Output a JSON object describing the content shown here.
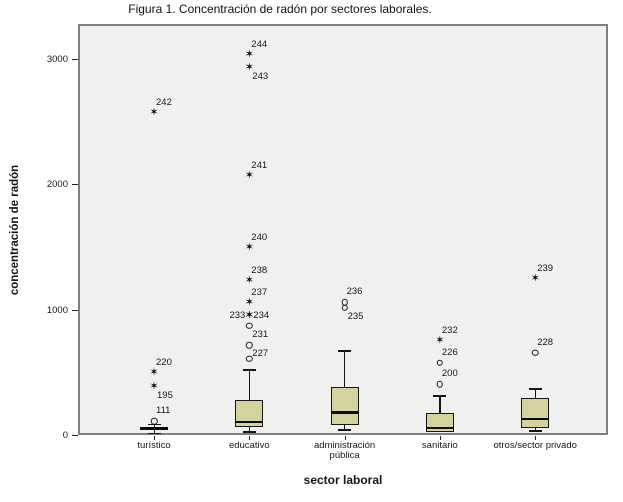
{
  "title": "Figura 1. Concentración de radón por sectores laborales.",
  "colors": {
    "box_fill": "#d5d2a0",
    "box_border": "#161616",
    "plot_background": "#f0f0ee",
    "plot_border": "#7f7f7f",
    "marker": "#0a0a0a"
  },
  "chart_data": {
    "type": "boxplot",
    "title": "Figura 1. Concentración de radón por sectores laborales.",
    "xlabel": "sector laboral",
    "ylabel": "concentración de radón",
    "ylim": [
      0,
      3270
    ],
    "yticks": [
      0,
      1000,
      2000,
      3000
    ],
    "grid": false,
    "legend": "none",
    "categories": [
      "turístico",
      "educativo",
      "administración\npública",
      "sanitario",
      "otros/sector privado"
    ],
    "series": [
      {
        "category": "turístico",
        "whisker_low": 18,
        "q1": 40,
        "median": 50,
        "q3": 64,
        "whisker_high": 82,
        "outliers": [
          {
            "case": "111",
            "value": 110,
            "marker": "circle",
            "label_pos": "above"
          },
          {
            "case": "195",
            "value": 385,
            "marker": "star",
            "label_pos": "below"
          },
          {
            "case": "220",
            "value": 495,
            "marker": "star",
            "label_pos": "above"
          },
          {
            "case": "242",
            "value": 2570,
            "marker": "star",
            "label_pos": "above"
          }
        ]
      },
      {
        "category": "educativo",
        "whisker_low": 32,
        "q1": 64,
        "median": 104,
        "q3": 279,
        "whisker_high": 519,
        "outliers": [
          {
            "case": "",
            "value": 610,
            "marker": "circle",
            "label_pos": "none"
          },
          {
            "case": "227",
            "value": 715,
            "marker": "circle",
            "label_pos": "below"
          },
          {
            "case": "231",
            "value": 870,
            "marker": "circle",
            "label_pos": "below"
          },
          {
            "case": "233",
            "value": 950,
            "marker": "star",
            "label_pos": "left"
          },
          {
            "case": "234",
            "value": 950,
            "marker": "star",
            "label_pos": "right"
          },
          {
            "case": "237",
            "value": 1055,
            "marker": "star",
            "label_pos": "above"
          },
          {
            "case": "238",
            "value": 1230,
            "marker": "star",
            "label_pos": "above"
          },
          {
            "case": "240",
            "value": 1490,
            "marker": "star",
            "label_pos": "above"
          },
          {
            "case": "241",
            "value": 2065,
            "marker": "star",
            "label_pos": "above"
          },
          {
            "case": "243",
            "value": 2930,
            "marker": "star",
            "label_pos": "below"
          },
          {
            "case": "244",
            "value": 3035,
            "marker": "star",
            "label_pos": "above"
          }
        ]
      },
      {
        "category": "administración pública",
        "whisker_low": 48,
        "q1": 80,
        "median": 180,
        "q3": 383,
        "whisker_high": 670,
        "outliers": [
          {
            "case": "235",
            "value": 1015,
            "marker": "circle",
            "label_pos": "below"
          },
          {
            "case": "236",
            "value": 1060,
            "marker": "circle",
            "label_pos": "above"
          }
        ]
      },
      {
        "category": "sanitario",
        "whisker_low": 24,
        "q1": 24,
        "median": 56,
        "q3": 176,
        "whisker_high": 311,
        "outliers": [
          {
            "case": "200",
            "value": 405,
            "marker": "circle",
            "label_pos": "above"
          },
          {
            "case": "226",
            "value": 575,
            "marker": "circle",
            "label_pos": "above"
          },
          {
            "case": "232",
            "value": 750,
            "marker": "star",
            "label_pos": "above"
          }
        ]
      },
      {
        "category": "otros/sector privado",
        "whisker_low": 40,
        "q1": 56,
        "median": 128,
        "q3": 295,
        "whisker_high": 367,
        "outliers": [
          {
            "case": "228",
            "value": 655,
            "marker": "circle",
            "label_pos": "above"
          },
          {
            "case": "239",
            "value": 1245,
            "marker": "star",
            "label_pos": "above"
          }
        ]
      }
    ],
    "marker_glyphs": {
      "star": "✶",
      "circle": "○"
    },
    "marker_legend": {
      "circle": "outlier",
      "star": "extreme-value"
    }
  }
}
